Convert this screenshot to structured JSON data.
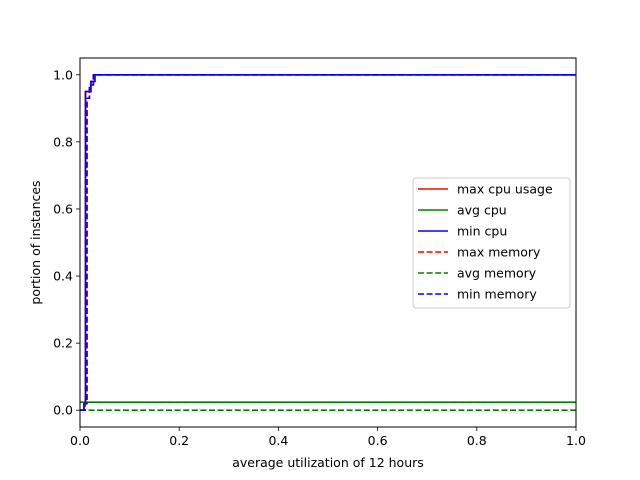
{
  "chart_data": {
    "type": "line",
    "title": "",
    "xlabel": "average utilization of 12 hours",
    "ylabel": "portion of instances",
    "xlim": [
      0.0,
      1.0
    ],
    "ylim": [
      -0.05,
      1.05
    ],
    "xticks": [
      "0.0",
      "0.2",
      "0.4",
      "0.6",
      "0.8",
      "1.0"
    ],
    "yticks": [
      "0.0",
      "0.2",
      "0.4",
      "0.6",
      "0.8",
      "1.0"
    ],
    "grid": false,
    "legend_position": "center-right",
    "series": [
      {
        "name": "max cpu usage",
        "color": "#ff0000",
        "dash": "solid",
        "x": [
          0.0,
          0.008,
          0.008,
          0.011,
          0.011,
          0.022,
          0.022,
          0.03,
          0.03,
          1.0
        ],
        "y": [
          0.0,
          0.0,
          0.02,
          0.02,
          0.95,
          0.95,
          0.98,
          0.98,
          1.0,
          1.0
        ]
      },
      {
        "name": "avg cpu",
        "color": "#008000",
        "dash": "solid",
        "x": [
          0.0,
          1.0
        ],
        "y": [
          0.024,
          0.024
        ]
      },
      {
        "name": "min cpu",
        "color": "#0000ff",
        "dash": "solid",
        "x": [
          0.0,
          0.008,
          0.008,
          0.011,
          0.011,
          0.022,
          0.022,
          0.03,
          0.03,
          1.0
        ],
        "y": [
          0.0,
          0.0,
          0.02,
          0.02,
          0.95,
          0.95,
          0.98,
          0.98,
          1.0,
          1.0
        ]
      },
      {
        "name": "max memory",
        "color": "#ff0000",
        "dash": "dashed",
        "x": [
          0.0,
          0.01,
          0.01,
          0.014,
          0.014,
          0.019,
          0.019,
          0.027,
          0.027,
          1.0
        ],
        "y": [
          0.0,
          0.0,
          0.02,
          0.02,
          0.93,
          0.93,
          0.97,
          0.97,
          1.0,
          1.0
        ]
      },
      {
        "name": "avg memory",
        "color": "#008000",
        "dash": "dashed",
        "x": [
          0.0,
          1.0
        ],
        "y": [
          0.0,
          0.0
        ]
      },
      {
        "name": "min memory",
        "color": "#0000ff",
        "dash": "dashed",
        "x": [
          0.0,
          0.01,
          0.01,
          0.014,
          0.014,
          0.019,
          0.019,
          0.027,
          0.027,
          1.0
        ],
        "y": [
          0.0,
          0.0,
          0.02,
          0.02,
          0.93,
          0.93,
          0.97,
          0.97,
          1.0,
          1.0
        ]
      }
    ]
  }
}
